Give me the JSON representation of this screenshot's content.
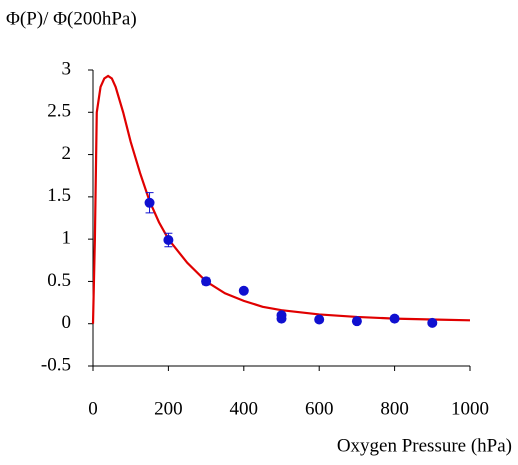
{
  "chart_data": {
    "type": "scatter",
    "ylabel": "Φ(P)/ Φ(200hPa)",
    "xlabel": "Oxygen Pressure (hPa)",
    "xlim": [
      0,
      1000
    ],
    "xticks": [
      0,
      200,
      400,
      600,
      800,
      1000
    ],
    "ylim": [
      -0.5,
      3
    ],
    "yticks": [
      -0.5,
      0,
      0.5,
      1,
      1.5,
      2,
      2.5,
      3
    ],
    "points": {
      "color": "#1010d0",
      "x": [
        150,
        200,
        300,
        400,
        500,
        500,
        600,
        700,
        800,
        900
      ],
      "values": [
        1.43,
        0.99,
        0.5,
        0.39,
        0.06,
        0.1,
        0.05,
        0.03,
        0.06,
        0.01
      ],
      "errors": [
        0.12,
        0.08,
        0.04,
        0.03,
        0.03,
        0.03,
        0.03,
        0.02,
        0.03,
        0.02
      ]
    },
    "curve": {
      "color": "#e00000",
      "x": [
        0,
        5,
        10,
        20,
        30,
        40,
        50,
        60,
        80,
        100,
        125,
        150,
        175,
        200,
        250,
        300,
        350,
        400,
        450,
        500,
        600,
        700,
        800,
        900,
        1000
      ],
      "values": [
        0,
        1.0,
        2.5,
        2.8,
        2.9,
        2.93,
        2.9,
        2.8,
        2.5,
        2.15,
        1.78,
        1.45,
        1.2,
        1.0,
        0.72,
        0.5,
        0.36,
        0.27,
        0.2,
        0.16,
        0.11,
        0.08,
        0.06,
        0.05,
        0.04
      ]
    }
  }
}
